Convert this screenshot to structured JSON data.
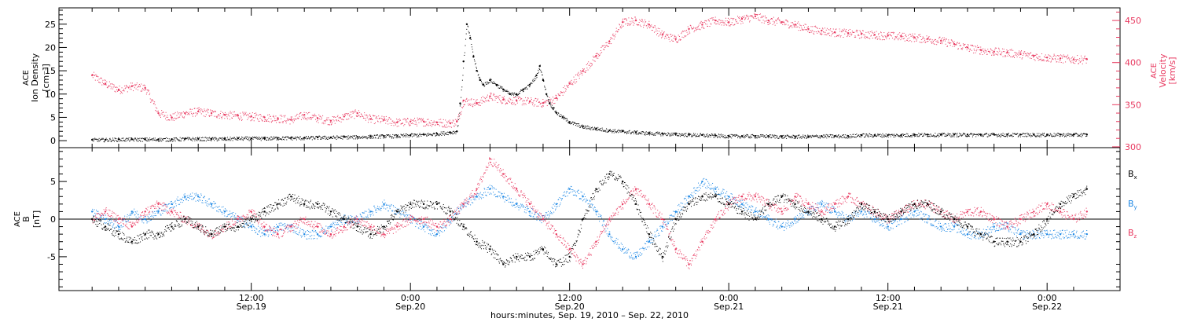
{
  "chart_data": [
    {
      "type": "scatter",
      "panel": "top",
      "ylabel_left": [
        "ACE",
        "Ion Density",
        "[cm⁻³]"
      ],
      "ylabel_right": [
        "ACE",
        "Velocity",
        "[km/s]"
      ],
      "ylim_left": [
        -1.5,
        28.5
      ],
      "ylim_right": [
        299,
        465
      ],
      "yticks_left": [
        0,
        5,
        10,
        15,
        20,
        25
      ],
      "yticks_right": [
        300,
        350,
        400,
        450
      ],
      "colors": {
        "density": "#000000",
        "velocity": "#e8385f"
      },
      "series": [
        {
          "axis": "left",
          "color": "#000000",
          "x": [
            0,
            2,
            4,
            6,
            8,
            10,
            12,
            14,
            16,
            18,
            20,
            22,
            24,
            26,
            28,
            30,
            32,
            34,
            36,
            38,
            40,
            42,
            44,
            46,
            48,
            50,
            52,
            54,
            55,
            55.5,
            56,
            56.5,
            57,
            57.5,
            58,
            58.5,
            59,
            60,
            61,
            62,
            63,
            64,
            65,
            66,
            67,
            67.5,
            68,
            68.5,
            69,
            69.5,
            70,
            71,
            72,
            74,
            76,
            78,
            80,
            82,
            84,
            86,
            88,
            90,
            92,
            94,
            96,
            98,
            100,
            102,
            104,
            106,
            108,
            110,
            112,
            114,
            116,
            118,
            120,
            122,
            124,
            126,
            128,
            130,
            132,
            134,
            136,
            138,
            140,
            142,
            144,
            146,
            148,
            150
          ],
          "y": [
            0.2,
            0.2,
            0.3,
            0.3,
            0.3,
            0.3,
            0.3,
            0.4,
            0.4,
            0.4,
            0.4,
            0.5,
            0.5,
            0.5,
            0.6,
            0.6,
            0.6,
            0.7,
            0.7,
            0.8,
            0.8,
            0.9,
            1.0,
            1.0,
            1.2,
            1.3,
            1.5,
            1.8,
            2.0,
            8,
            17,
            25,
            22,
            18,
            15,
            13,
            12,
            13,
            12,
            11,
            10,
            10,
            11,
            12,
            14,
            16,
            13,
            10,
            8,
            7,
            6,
            5,
            4,
            3,
            2.6,
            2.2,
            2.0,
            1.8,
            1.6,
            1.5,
            1.4,
            1.3,
            1.2,
            1.1,
            1.0,
            1.0,
            1.0,
            1.0,
            0.9,
            0.9,
            0.9,
            1.0,
            1.0,
            1.0,
            1.2,
            1.2,
            1.2,
            1.2,
            1.3,
            1.3,
            1.3,
            1.3,
            1.3,
            1.3,
            1.3,
            1.3,
            1.3,
            1.3,
            1.3,
            1.3,
            1.3,
            1.3
          ]
        },
        {
          "axis": "right",
          "color": "#e8385f",
          "x": [
            0,
            2,
            4,
            6,
            8,
            10,
            12,
            14,
            16,
            18,
            20,
            22,
            24,
            26,
            28,
            30,
            32,
            34,
            36,
            38,
            40,
            42,
            44,
            46,
            48,
            50,
            52,
            54,
            55,
            56,
            58,
            60,
            62,
            64,
            66,
            68,
            70,
            72,
            74,
            76,
            78,
            80,
            82,
            84,
            86,
            88,
            90,
            92,
            94,
            96,
            98,
            100,
            102,
            104,
            106,
            108,
            110,
            112,
            114,
            116,
            118,
            120,
            122,
            124,
            126,
            128,
            130,
            132,
            134,
            136,
            138,
            140,
            142,
            144,
            146,
            148,
            150
          ],
          "y": [
            385,
            375,
            368,
            372,
            370,
            340,
            335,
            340,
            342,
            340,
            338,
            337,
            336,
            335,
            334,
            332,
            338,
            334,
            331,
            336,
            340,
            333,
            332,
            329,
            330,
            330,
            329,
            328,
            330,
            355,
            352,
            360,
            356,
            355,
            354,
            352,
            358,
            375,
            390,
            408,
            425,
            448,
            450,
            445,
            433,
            428,
            440,
            445,
            450,
            448,
            452,
            455,
            450,
            448,
            445,
            440,
            438,
            436,
            435,
            434,
            433,
            432,
            431,
            430,
            428,
            426,
            422,
            418,
            415,
            413,
            412,
            410,
            408,
            406,
            405,
            404,
            404
          ]
        }
      ]
    },
    {
      "type": "scatter",
      "panel": "bottom",
      "ylabel_left": [
        "ACE",
        "B",
        "[nT]"
      ],
      "ylim": [
        -9.5,
        9.5
      ],
      "yticks": [
        -5,
        0,
        5
      ],
      "legend": [
        {
          "label": "Bₓ",
          "color": "#000000"
        },
        {
          "label": "Bᵧ",
          "color": "#1e88e5"
        },
        {
          "label": "B_z",
          "color": "#e8385f"
        }
      ],
      "legend_labels": [
        "B",
        "B",
        "B"
      ],
      "legend_subs": [
        "x",
        "y",
        "z"
      ],
      "legend_placement": "right",
      "series": [
        {
          "color": "#000000",
          "x": [
            0,
            2,
            4,
            6,
            8,
            10,
            12,
            14,
            16,
            18,
            20,
            22,
            24,
            26,
            28,
            30,
            32,
            34,
            36,
            38,
            40,
            42,
            44,
            46,
            48,
            50,
            52,
            54,
            56,
            58,
            60,
            62,
            64,
            66,
            68,
            70,
            72,
            74,
            76,
            78,
            80,
            82,
            84,
            86,
            88,
            90,
            92,
            94,
            96,
            98,
            100,
            102,
            104,
            106,
            108,
            110,
            112,
            114,
            116,
            118,
            120,
            122,
            124,
            126,
            128,
            130,
            132,
            134,
            136,
            138,
            140,
            142,
            144,
            146,
            148,
            150
          ],
          "y": [
            0,
            -1,
            -2,
            -3,
            -2,
            -2,
            -1,
            0,
            -1,
            -2,
            -1,
            -1,
            0,
            1,
            2,
            3,
            2,
            2,
            1,
            0,
            -1,
            -2,
            -1,
            1,
            2,
            2,
            2,
            1,
            -1,
            -3,
            -4,
            -6,
            -5,
            -5,
            -4,
            -6,
            -5,
            0,
            4,
            6,
            5,
            2,
            -2,
            -5,
            0,
            2,
            3,
            3,
            2,
            1,
            0,
            2,
            3,
            2,
            1,
            0,
            -1,
            0,
            2,
            1,
            0,
            1,
            2,
            2,
            1,
            0,
            -1,
            -2,
            -3,
            -3,
            -3,
            -2,
            0,
            2,
            3,
            4
          ]
        },
        {
          "color": "#1e88e5",
          "x": [
            0,
            2,
            4,
            6,
            8,
            10,
            12,
            14,
            16,
            18,
            20,
            22,
            24,
            26,
            28,
            30,
            32,
            34,
            36,
            38,
            40,
            42,
            44,
            46,
            48,
            50,
            52,
            54,
            56,
            58,
            60,
            62,
            64,
            66,
            68,
            70,
            72,
            74,
            76,
            78,
            80,
            82,
            84,
            86,
            88,
            90,
            92,
            94,
            96,
            98,
            100,
            102,
            104,
            106,
            108,
            110,
            112,
            114,
            116,
            118,
            120,
            122,
            124,
            126,
            128,
            130,
            132,
            134,
            136,
            138,
            140,
            142,
            144,
            146,
            148,
            150
          ],
          "y": [
            1,
            0,
            -1,
            1,
            0,
            1,
            2,
            3,
            3,
            2,
            1,
            0,
            -1,
            -2,
            -1,
            -1,
            -2,
            -2,
            -1,
            0,
            0,
            1,
            2,
            1,
            0,
            -1,
            -2,
            0,
            2,
            3,
            4,
            3,
            2,
            1,
            0,
            2,
            4,
            3,
            1,
            -2,
            -4,
            -5,
            -3,
            -1,
            1,
            3,
            5,
            4,
            3,
            2,
            1,
            0,
            -1,
            0,
            1,
            2,
            1,
            0,
            1,
            0,
            -1,
            0,
            1,
            0,
            -1,
            -1,
            -2,
            -2,
            -1,
            -1,
            -2,
            -2,
            -2,
            -2,
            -2,
            -2
          ]
        },
        {
          "color": "#e8385f",
          "x": [
            0,
            2,
            4,
            6,
            8,
            10,
            12,
            14,
            16,
            18,
            20,
            22,
            24,
            26,
            28,
            30,
            32,
            34,
            36,
            38,
            40,
            42,
            44,
            46,
            48,
            50,
            52,
            54,
            56,
            58,
            60,
            62,
            64,
            66,
            68,
            70,
            72,
            74,
            76,
            78,
            80,
            82,
            84,
            86,
            88,
            90,
            92,
            94,
            96,
            98,
            100,
            102,
            104,
            106,
            108,
            110,
            112,
            114,
            116,
            118,
            120,
            122,
            124,
            126,
            128,
            130,
            132,
            134,
            136,
            138,
            140,
            142,
            144,
            146,
            148,
            150
          ],
          "y": [
            0,
            1,
            0,
            -1,
            1,
            2,
            1,
            0,
            -1,
            -2,
            -1,
            0,
            1,
            -1,
            -2,
            -1,
            0,
            -1,
            -2,
            -1,
            0,
            -1,
            -2,
            -1,
            0,
            0,
            -1,
            0,
            2,
            4,
            8,
            6,
            4,
            2,
            0,
            -2,
            -4,
            -6,
            -3,
            0,
            2,
            4,
            2,
            0,
            -4,
            -6,
            -3,
            0,
            2,
            3,
            3,
            2,
            1,
            3,
            2,
            1,
            2,
            3,
            2,
            1,
            0,
            1,
            2,
            2,
            1,
            0,
            1,
            1,
            0,
            -1,
            0,
            1,
            2,
            1,
            0,
            1
          ]
        }
      ]
    }
  ],
  "x_axis": {
    "xlim": [
      -5,
      155
    ],
    "ticks": [
      {
        "x": 12,
        "time": "12:00",
        "date": "Sep.19"
      },
      {
        "x": 24,
        "time": "0:00",
        "date": "Sep.20"
      },
      {
        "x": 36,
        "time": "12:00",
        "date": "Sep.20"
      },
      {
        "x": 48,
        "time": "0:00",
        "date": "Sep.21"
      },
      {
        "x": 60,
        "time": "12:00",
        "date": "Sep.21"
      },
      {
        "x": 72,
        "time": "0:00",
        "date": "Sep.22"
      }
    ],
    "title": "hours:minutes, Sep. 19, 2010 – Sep. 22, 2010"
  }
}
